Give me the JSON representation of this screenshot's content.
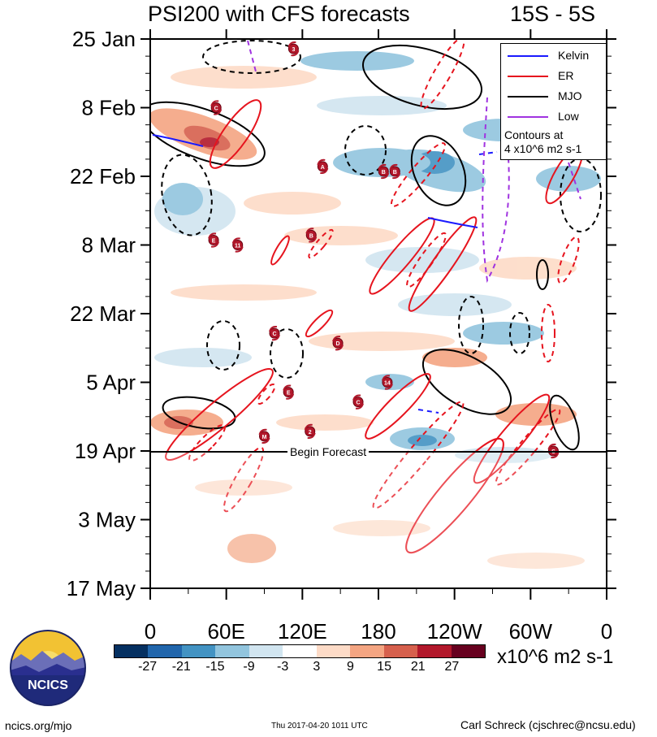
{
  "header": {
    "title": "PSI200 with CFS forecasts",
    "region": "15S - 5S"
  },
  "chart_data": {
    "type": "heatmap",
    "title": "PSI200 with CFS forecasts",
    "region_label": "15S - 5S",
    "x_axis": {
      "tick_labels": [
        "0",
        "60E",
        "120E",
        "180",
        "120W",
        "60W",
        "0"
      ],
      "xlim_deg": [
        0,
        360
      ]
    },
    "y_axis": {
      "tick_labels": [
        "25 Jan",
        "8 Feb",
        "22 Feb",
        "8 Mar",
        "22 Mar",
        "5 Apr",
        "19 Apr",
        "3 May",
        "17 May"
      ],
      "tick_days": [
        0,
        14,
        28,
        42,
        56,
        70,
        84,
        98,
        112
      ]
    },
    "forecast_marker": {
      "label": "Begin Forecast",
      "date": "19 Apr",
      "day": 84
    },
    "legend": {
      "entries": [
        {
          "name": "Kelvin",
          "color": "#1a1aff"
        },
        {
          "name": "ER",
          "color": "#e6141e"
        },
        {
          "name": "MJO",
          "color": "#000000"
        },
        {
          "name": "Low",
          "color": "#a033e0"
        }
      ],
      "note_line1": "Contours at",
      "note_line2": "4 x10^6 m2 s-1"
    },
    "colorbar": {
      "ticks": [
        "-27",
        "-21",
        "-15",
        "-9",
        "-3",
        "3",
        "9",
        "15",
        "21",
        "27"
      ],
      "colors": [
        "#053061",
        "#2166ac",
        "#4393c3",
        "#92c5de",
        "#d1e5f0",
        "#ffffff",
        "#fddbc7",
        "#f4a582",
        "#d6604d",
        "#b2182b",
        "#67001f"
      ],
      "units": "x10^6 m2 s-1"
    },
    "storms": [
      {
        "label": "C",
        "lon": 52,
        "day": 14
      },
      {
        "label": "3",
        "lon": 113,
        "day": 2
      },
      {
        "label": "A",
        "lon": 136,
        "day": 26
      },
      {
        "label": "B",
        "lon": 184,
        "day": 27
      },
      {
        "label": "B",
        "lon": 193,
        "day": 27
      },
      {
        "label": "E",
        "lon": 50,
        "day": 41
      },
      {
        "label": "11",
        "lon": 69,
        "day": 42
      },
      {
        "label": "B",
        "lon": 127,
        "day": 40
      },
      {
        "label": "C",
        "lon": 98,
        "day": 60
      },
      {
        "label": "D",
        "lon": 148,
        "day": 62
      },
      {
        "label": "14",
        "lon": 187,
        "day": 70
      },
      {
        "label": "E",
        "lon": 109,
        "day": 72
      },
      {
        "label": "C",
        "lon": 164,
        "day": 74
      },
      {
        "label": "2",
        "lon": 126,
        "day": 80
      },
      {
        "label": "M",
        "lon": 90,
        "day": 81
      },
      {
        "label": "S",
        "lon": 318,
        "day": 84
      }
    ]
  },
  "footer": {
    "logo_text": "NCICS",
    "site": "ncics.org/mjo",
    "timestamp": "Thu 2017-04-20 1011 UTC",
    "author": "Carl Schreck (cjschrec@ncsu.edu)"
  }
}
